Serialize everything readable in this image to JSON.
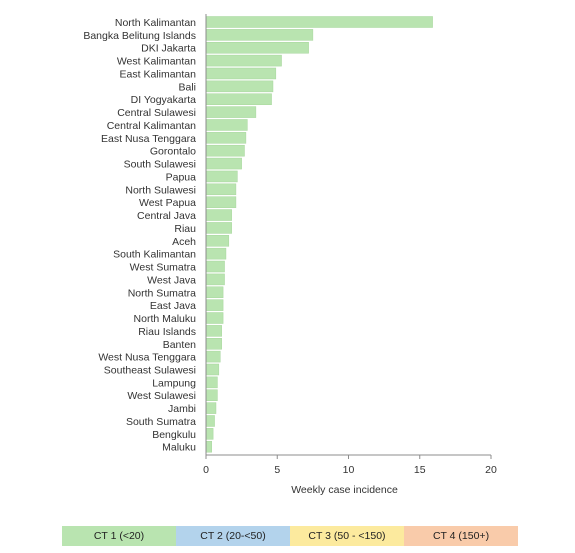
{
  "chart_data": {
    "type": "bar",
    "orientation": "horizontal",
    "categories": [
      "North Kalimantan",
      "Bangka Belitung Islands",
      "DKI Jakarta",
      "West Kalimantan",
      "East Kalimantan",
      "Bali",
      "DI Yogyakarta",
      "Central Sulawesi",
      "Central Kalimantan",
      "East Nusa Tenggara",
      "Gorontalo",
      "South Sulawesi",
      "Papua",
      "North Sulawesi",
      "West Papua",
      "Central Java",
      "Riau",
      "Aceh",
      "South Kalimantan",
      "West Sumatra",
      "West Java",
      "North Sumatra",
      "East Java",
      "North Maluku",
      "Riau Islands",
      "Banten",
      "West Nusa Tenggara",
      "Southeast Sulawesi",
      "Lampung",
      "West Sulawesi",
      "Jambi",
      "South Sumatra",
      "Bengkulu",
      "Maluku"
    ],
    "values": [
      15.9,
      7.5,
      7.2,
      5.3,
      4.9,
      4.7,
      4.6,
      3.5,
      2.9,
      2.8,
      2.7,
      2.5,
      2.2,
      2.1,
      2.1,
      1.8,
      1.8,
      1.6,
      1.4,
      1.3,
      1.3,
      1.2,
      1.2,
      1.2,
      1.1,
      1.1,
      1.0,
      0.9,
      0.8,
      0.8,
      0.7,
      0.6,
      0.5,
      0.4
    ],
    "xlabel": "Weekly case incidence",
    "xlim": [
      0,
      20
    ],
    "xticks": [
      0,
      5,
      10,
      15,
      20
    ],
    "bar_color": "#b9e4b0",
    "bar_edge_color": "#a6d69c",
    "grid": false,
    "legend": {
      "placement": "bottom",
      "items": [
        {
          "label": "CT 1 (<20)",
          "color": "#b9e4b0"
        },
        {
          "label": "CT 2 (20-<50)",
          "color": "#b3d3ec"
        },
        {
          "label": "CT 3 (50 - <150)",
          "color": "#fcea9e"
        },
        {
          "label": "CT 4 (150+)",
          "color": "#f9cbaa"
        }
      ]
    }
  }
}
